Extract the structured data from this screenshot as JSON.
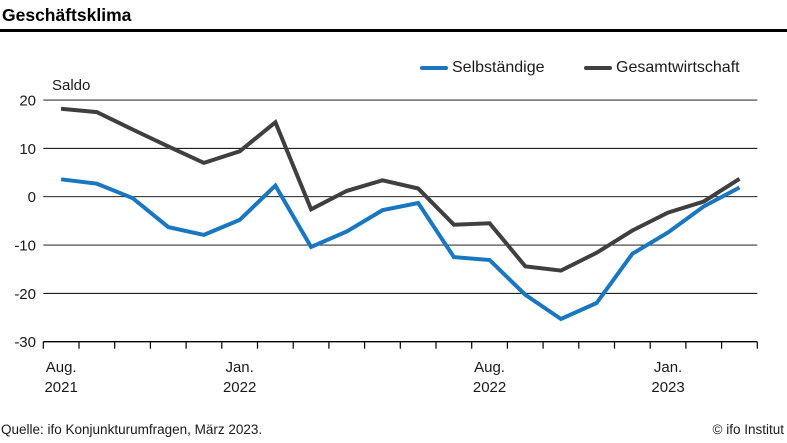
{
  "header": {
    "title": "Geschäftsklima"
  },
  "legend": {
    "items": [
      {
        "label": "Selbständige",
        "color": "#1976c0"
      },
      {
        "label": "Gesamtwirtschaft",
        "color": "#3f3f3f"
      }
    ]
  },
  "chart_data": {
    "type": "line",
    "title": "Geschäftsklima",
    "ylabel": "Saldo",
    "ylim": [
      -30,
      20
    ],
    "ytick_step": 10,
    "grid": true,
    "legend_position": "top-right",
    "x": [
      "Aug 2021",
      "Sep 2021",
      "Okt 2021",
      "Nov 2021",
      "Dez 2021",
      "Jan 2022",
      "Feb 2022",
      "Mär 2022",
      "Apr 2022",
      "Mai 2022",
      "Jun 2022",
      "Jul 2022",
      "Aug 2022",
      "Sep 2022",
      "Okt 2022",
      "Nov 2022",
      "Dez 2022",
      "Jan 2023",
      "Feb 2023",
      "Mär 2023"
    ],
    "xtick_labels": [
      {
        "month_index": 0,
        "line1": "Aug.",
        "line2": "2021"
      },
      {
        "month_index": 5,
        "line1": "Jan.",
        "line2": "2022"
      },
      {
        "month_index": 12,
        "line1": "Aug.",
        "line2": "2022"
      },
      {
        "month_index": 17,
        "line1": "Jan.",
        "line2": "2023"
      }
    ],
    "series": [
      {
        "name": "Selbständige",
        "color": "#1976c0",
        "values": [
          3.6,
          2.7,
          -0.3,
          -6.3,
          -7.9,
          -4.8,
          2.3,
          -10.4,
          -7.2,
          -2.8,
          -1.3,
          -12.5,
          -13.1,
          -20.3,
          -25.3,
          -22.0,
          -11.8,
          -7.4,
          -2.0,
          1.9
        ]
      },
      {
        "name": "Gesamtwirtschaft",
        "color": "#3f3f3f",
        "values": [
          18.2,
          17.5,
          13.9,
          10.4,
          7.0,
          9.4,
          15.4,
          -2.6,
          1.2,
          3.4,
          1.7,
          -5.8,
          -5.5,
          -14.4,
          -15.3,
          -11.6,
          -7.0,
          -3.3,
          -1.0,
          3.7
        ]
      }
    ]
  },
  "footer": {
    "source": "Quelle: ifo Konjunkturumfragen, März 2023.",
    "copyright": "© ifo Institut"
  }
}
